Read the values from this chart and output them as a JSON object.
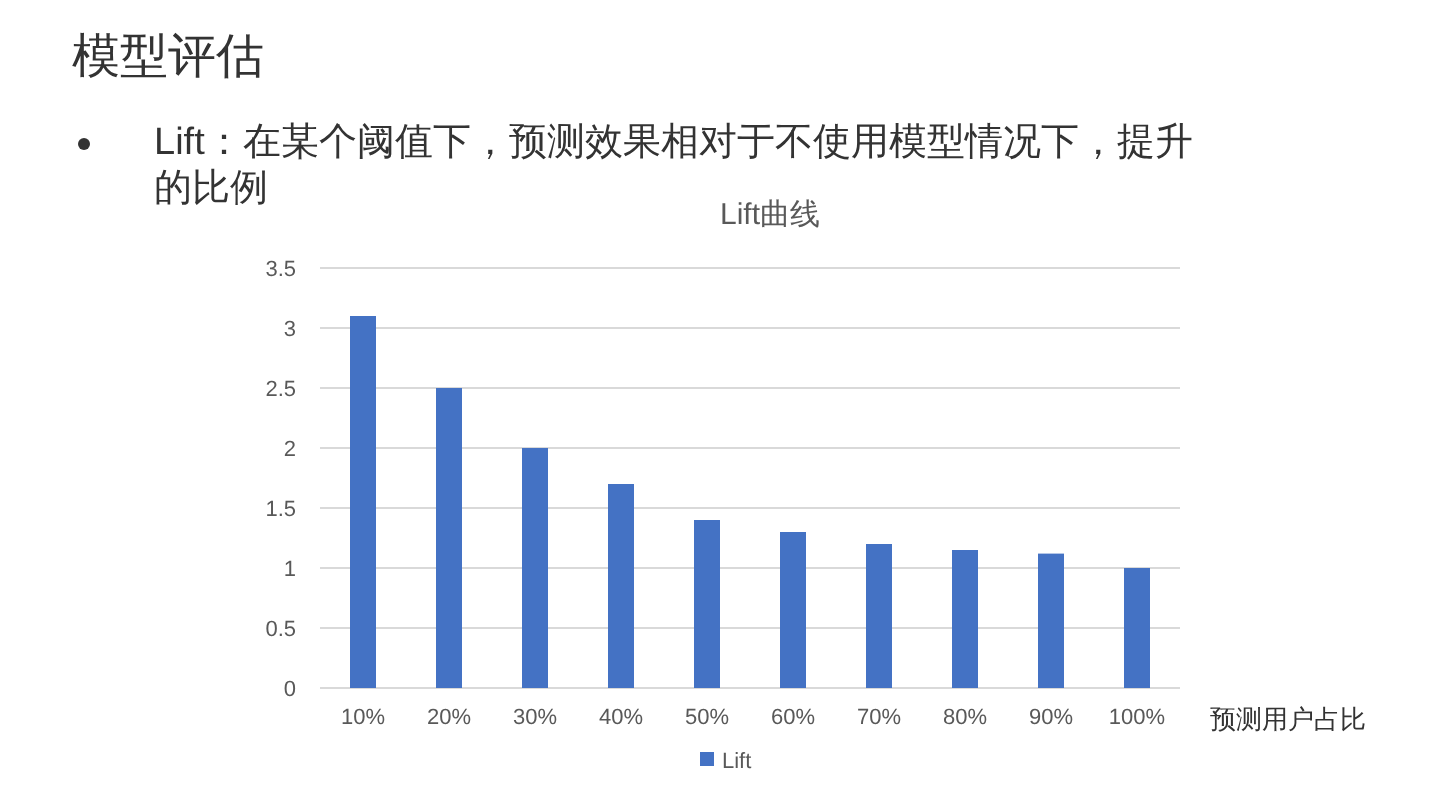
{
  "chart_data": {
    "type": "bar",
    "title": "Lift曲线",
    "xlabel": "预测用户占比",
    "annotations": [
      "模型评估",
      "Lift：在某个阈值下，预测效果相对于不使用模型情况下，提升的比例"
    ],
    "categories": [
      "10%",
      "20%",
      "30%",
      "40%",
      "50%",
      "60%",
      "70%",
      "80%",
      "90%",
      "100%"
    ],
    "series": [
      {
        "name": "Lift",
        "color": "#4472c4",
        "values": [
          3.1,
          2.5,
          2.0,
          1.7,
          1.4,
          1.3,
          1.2,
          1.15,
          1.12,
          1.0
        ]
      }
    ],
    "ylim": [
      0,
      3.5
    ],
    "yticks": [
      0,
      0.5,
      1,
      1.5,
      2,
      2.5,
      3,
      3.5
    ],
    "grid": "y",
    "legend": "bottom"
  }
}
